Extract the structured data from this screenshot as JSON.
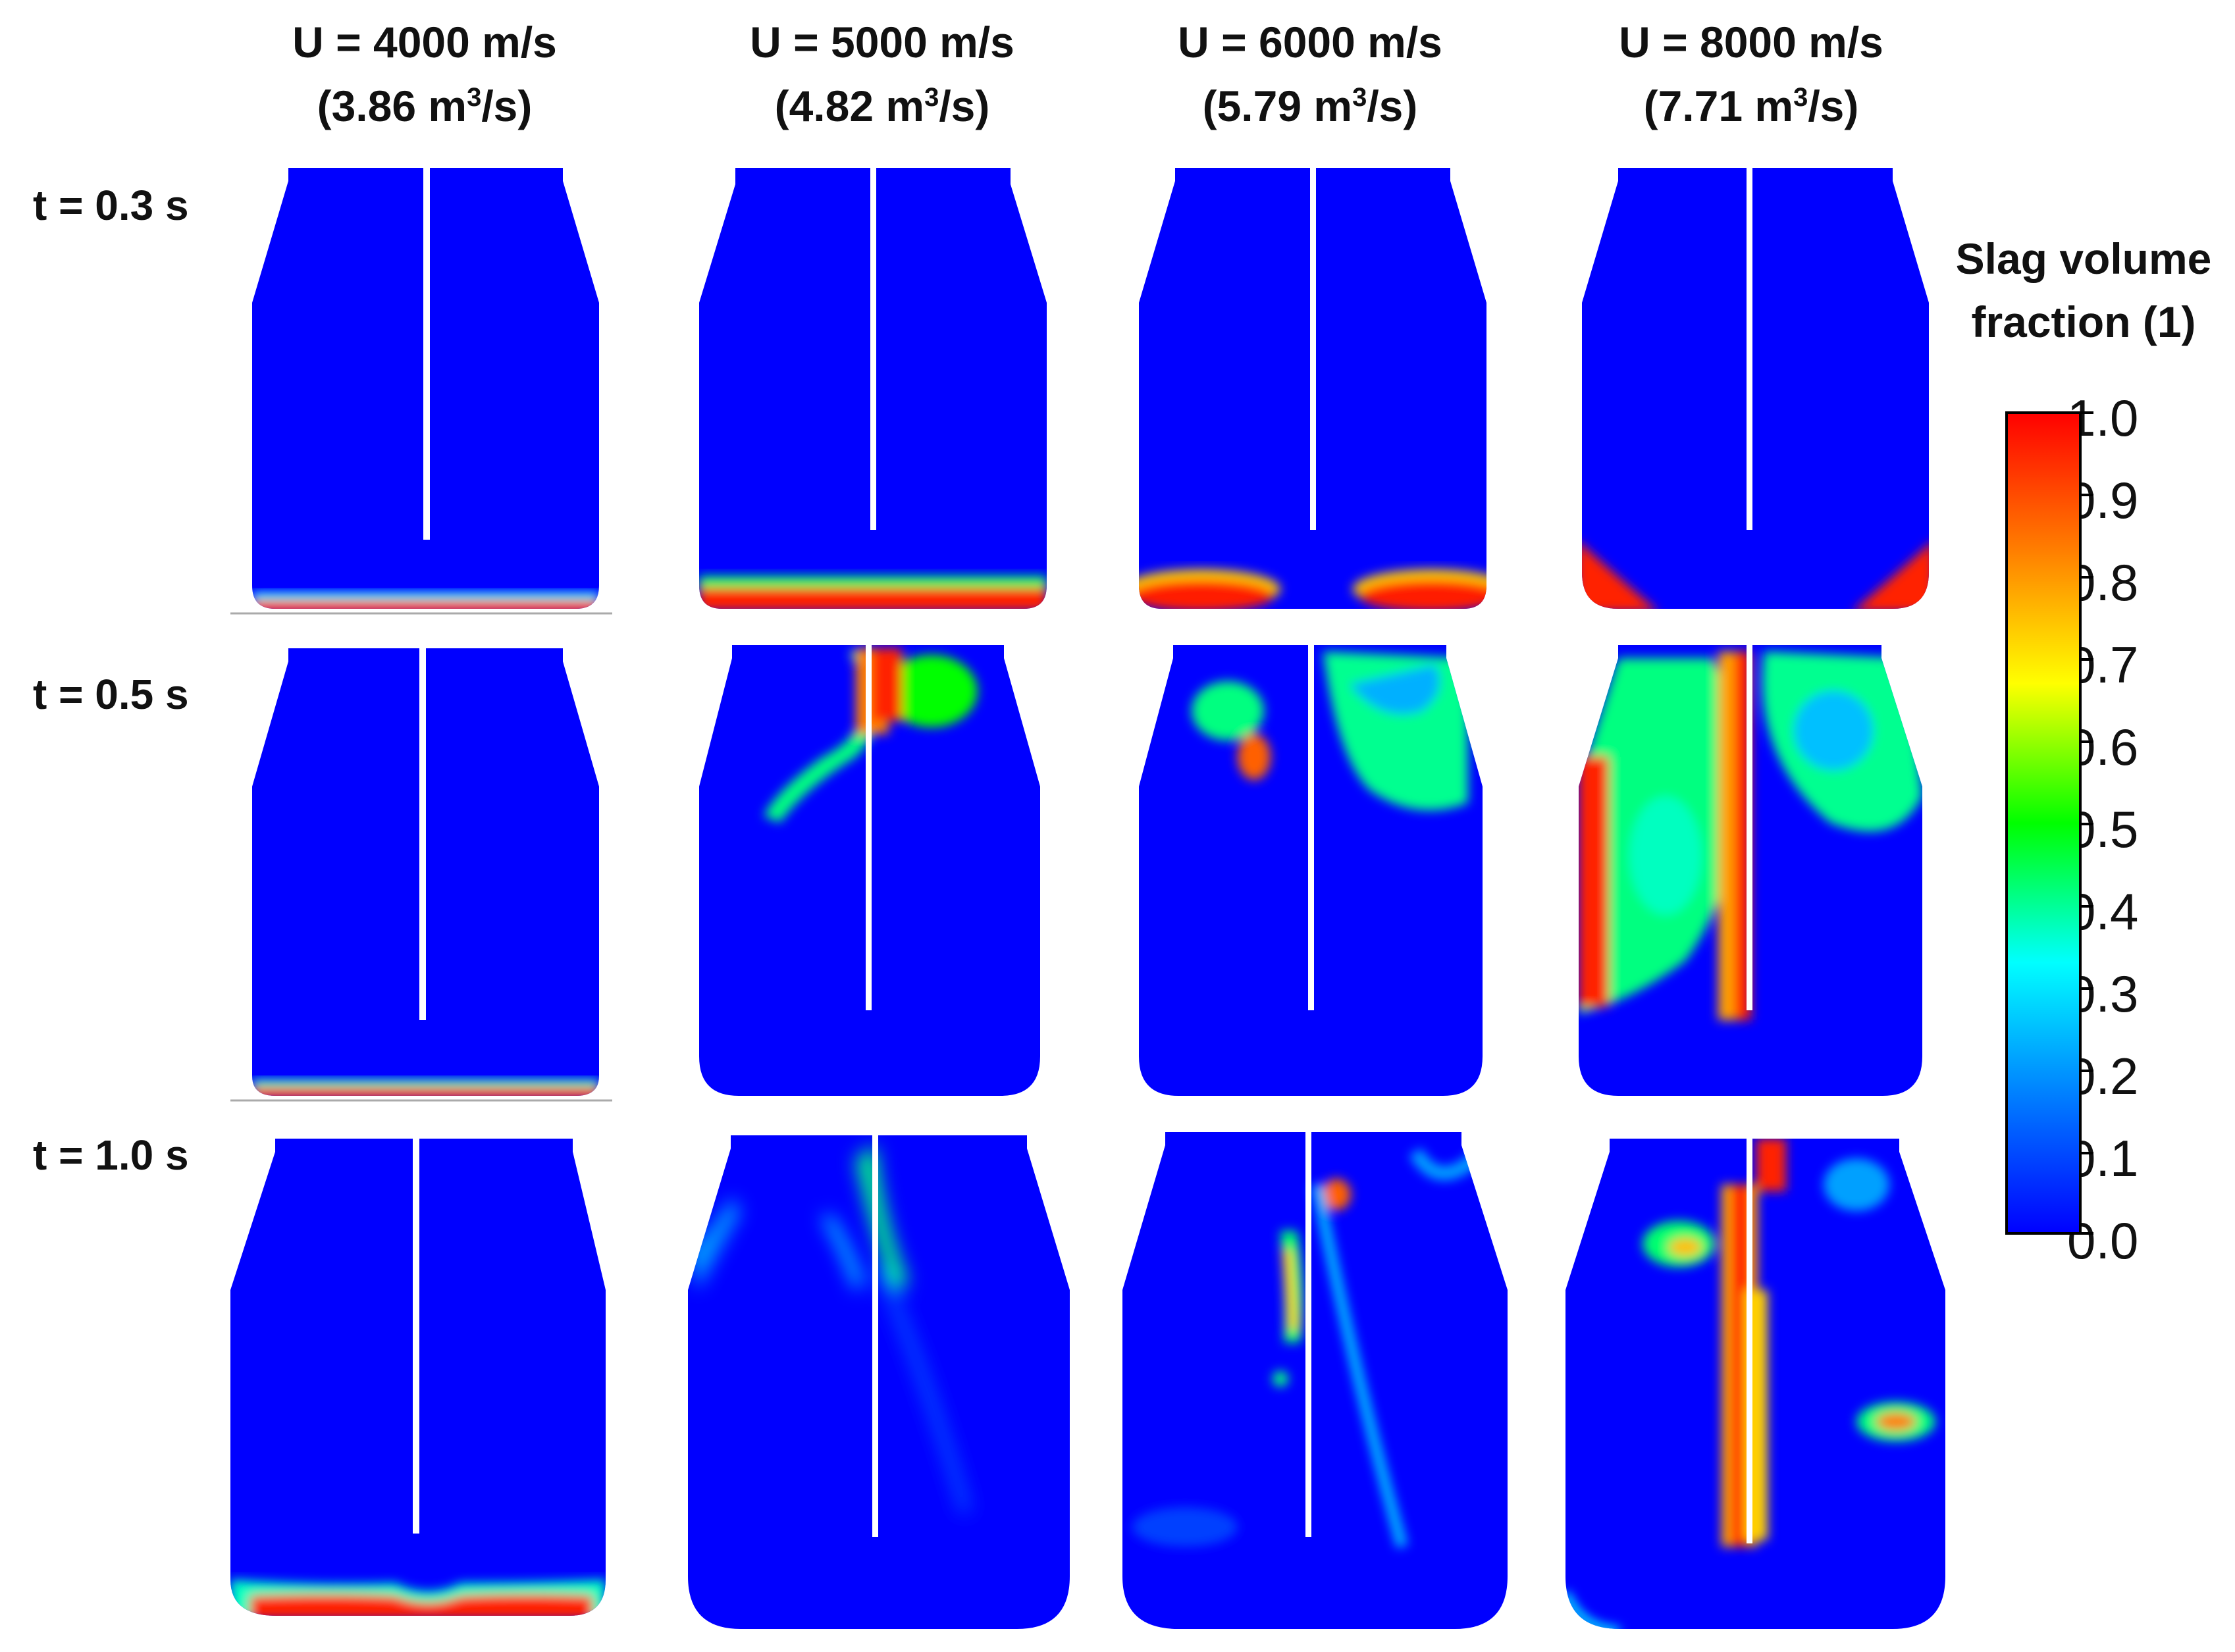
{
  "columns": [
    {
      "velocity": "U = 4000 m/s",
      "flow_prefix": "(3.86 m",
      "flow_sup": "3",
      "flow_suffix": "/s)"
    },
    {
      "velocity": "U = 5000 m/s",
      "flow_prefix": "(4.82 m",
      "flow_sup": "3",
      "flow_suffix": "/s)"
    },
    {
      "velocity": "U = 6000 m/s",
      "flow_prefix": "(5.79 m",
      "flow_sup": "3",
      "flow_suffix": "/s)"
    },
    {
      "velocity": "U = 8000 m/s",
      "flow_prefix": "(7.71 m",
      "flow_sup": "3",
      "flow_suffix": "/s)"
    }
  ],
  "rows": [
    "t = 0.3 s",
    "t = 0.5 s",
    "t = 1.0 s"
  ],
  "colorbar": {
    "title_line1": "Slag volume",
    "title_line2": "fraction (1)",
    "ticks": [
      "1.0",
      "0.9",
      "0.8",
      "0.7",
      "0.6",
      "0.5",
      "0.4",
      "0.3",
      "0.2",
      "0.1",
      "0.0"
    ],
    "min": 0.0,
    "max": 1.0,
    "colors": [
      "#0000ff",
      "#0080ff",
      "#00ffff",
      "#00ff00",
      "#ffff00",
      "#ff8000",
      "#ff0000"
    ]
  },
  "field_color": "#0000ff",
  "lance_color": "#ffffff"
}
